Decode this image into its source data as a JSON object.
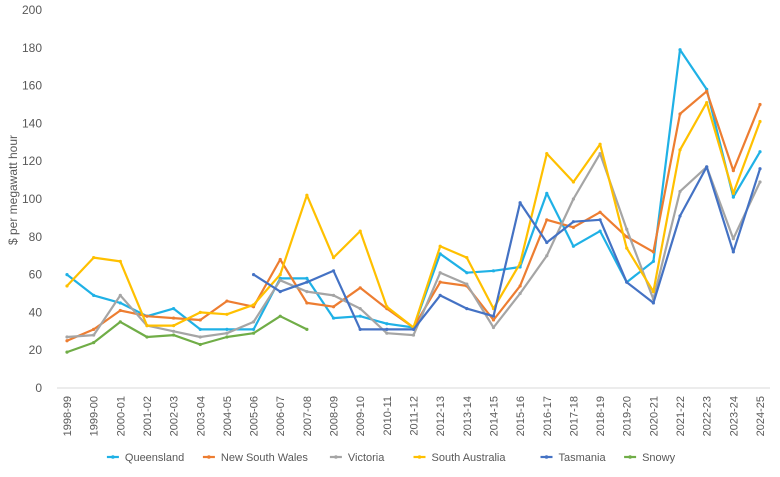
{
  "chart_data": {
    "type": "line",
    "title": "",
    "xlabel": "",
    "ylabel": "$ per megawatt hour",
    "ylim": [
      0,
      200
    ],
    "yticks": [
      0,
      20,
      40,
      60,
      80,
      100,
      120,
      140,
      160,
      180,
      200
    ],
    "grid": false,
    "legend_position": "bottom",
    "categories": [
      "1998-99",
      "1999-00",
      "2000-01",
      "2001-02",
      "2002-03",
      "2003-04",
      "2004-05",
      "2005-06",
      "2006-07",
      "2007-08",
      "2008-09",
      "2009-10",
      "2010-11",
      "2011-12",
      "2012-13",
      "2013-14",
      "2014-15",
      "2015-16",
      "2016-17",
      "2017-18",
      "2018-19",
      "2019-20",
      "2020-21",
      "2021-22",
      "2022-23",
      "2023-24",
      "2024-25"
    ],
    "series": [
      {
        "name": "Queensland",
        "color": "#1fb1e6",
        "values": [
          60,
          49,
          45,
          38,
          42,
          31,
          31,
          31,
          58,
          58,
          37,
          38,
          34,
          32,
          71,
          61,
          62,
          64,
          103,
          75,
          83,
          56,
          67,
          179,
          158,
          101,
          125
        ]
      },
      {
        "name": "New South Wales",
        "color": "#ed7d31",
        "values": [
          25,
          31,
          41,
          38,
          37,
          36,
          46,
          43,
          68,
          45,
          43,
          53,
          42,
          32,
          56,
          54,
          36,
          54,
          89,
          85,
          93,
          80,
          72,
          145,
          157,
          115,
          150
        ]
      },
      {
        "name": "Victoria",
        "color": "#a5a5a5",
        "values": [
          27,
          28,
          49,
          33,
          30,
          27,
          29,
          35,
          57,
          51,
          49,
          42,
          29,
          28,
          61,
          55,
          32,
          50,
          70,
          100,
          124,
          84,
          47,
          104,
          117,
          79,
          109
        ]
      },
      {
        "name": "South Australia",
        "color": "#ffc000",
        "values": [
          54,
          69,
          67,
          33,
          33,
          40,
          39,
          44,
          60,
          102,
          69,
          83,
          43,
          32,
          75,
          69,
          42,
          66,
          124,
          109,
          129,
          74,
          51,
          126,
          151,
          103,
          141
        ]
      },
      {
        "name": "Tasmania",
        "color": "#4472c4",
        "values": [
          null,
          null,
          null,
          null,
          null,
          null,
          null,
          60,
          51,
          56,
          62,
          31,
          31,
          31,
          49,
          42,
          38,
          98,
          77,
          88,
          89,
          56,
          45,
          91,
          117,
          72,
          116
        ]
      },
      {
        "name": "Snowy",
        "color": "#70ad47",
        "values": [
          19,
          24,
          35,
          27,
          28,
          23,
          27,
          29,
          38,
          31,
          null,
          null,
          null,
          null,
          null,
          null,
          null,
          null,
          null,
          null,
          null,
          null,
          null,
          null,
          null,
          null,
          null
        ]
      }
    ]
  }
}
